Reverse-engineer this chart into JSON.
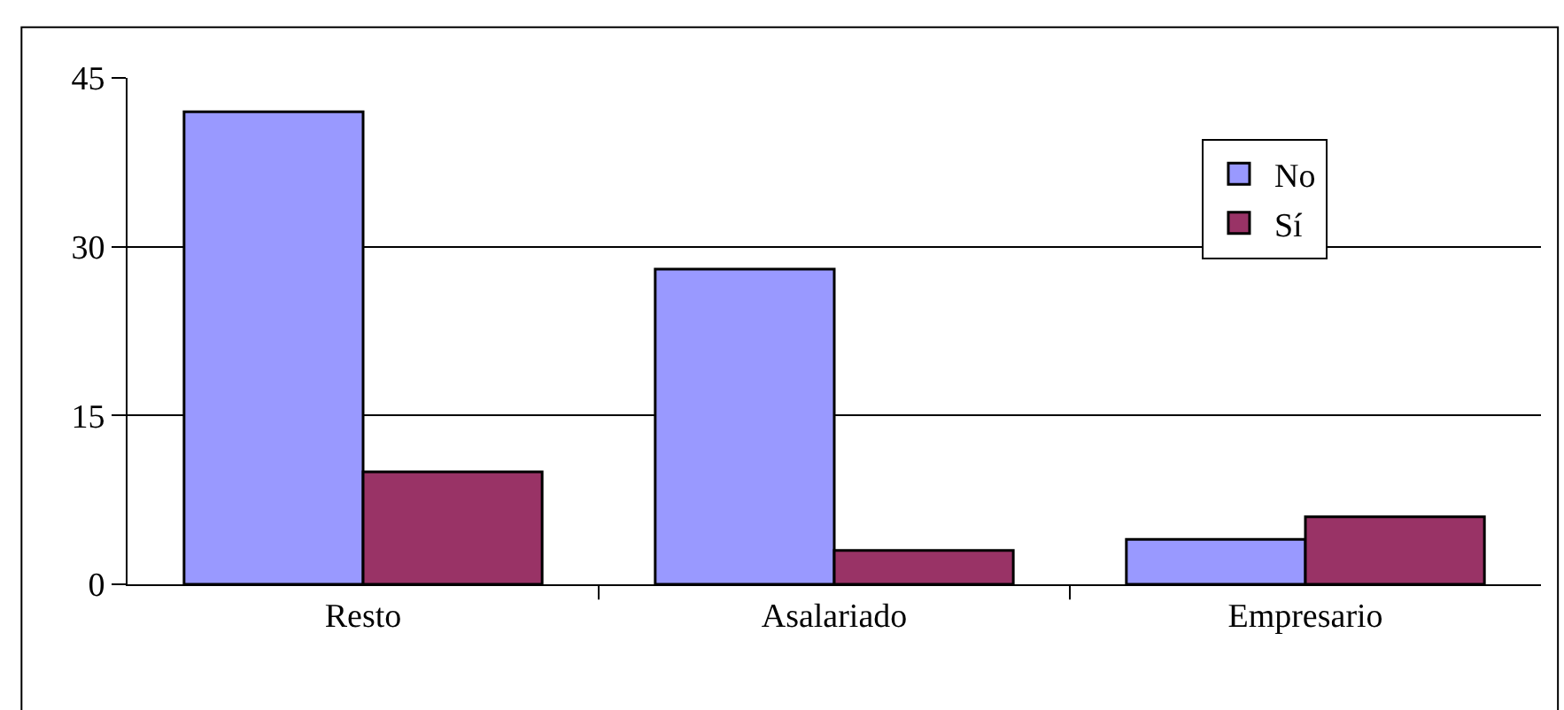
{
  "chart_data": {
    "type": "bar",
    "categories": [
      "Resto",
      "Asalariado",
      "Empresario"
    ],
    "series": [
      {
        "name": "No",
        "color": "#9999ff",
        "values": [
          42,
          28,
          4
        ]
      },
      {
        "name": "Sí",
        "color": "#993366",
        "values": [
          10,
          3,
          6
        ]
      }
    ],
    "ylim": [
      0,
      45
    ],
    "yticks": [
      0,
      15,
      30,
      45
    ],
    "grid": "y",
    "legend": "top right"
  }
}
